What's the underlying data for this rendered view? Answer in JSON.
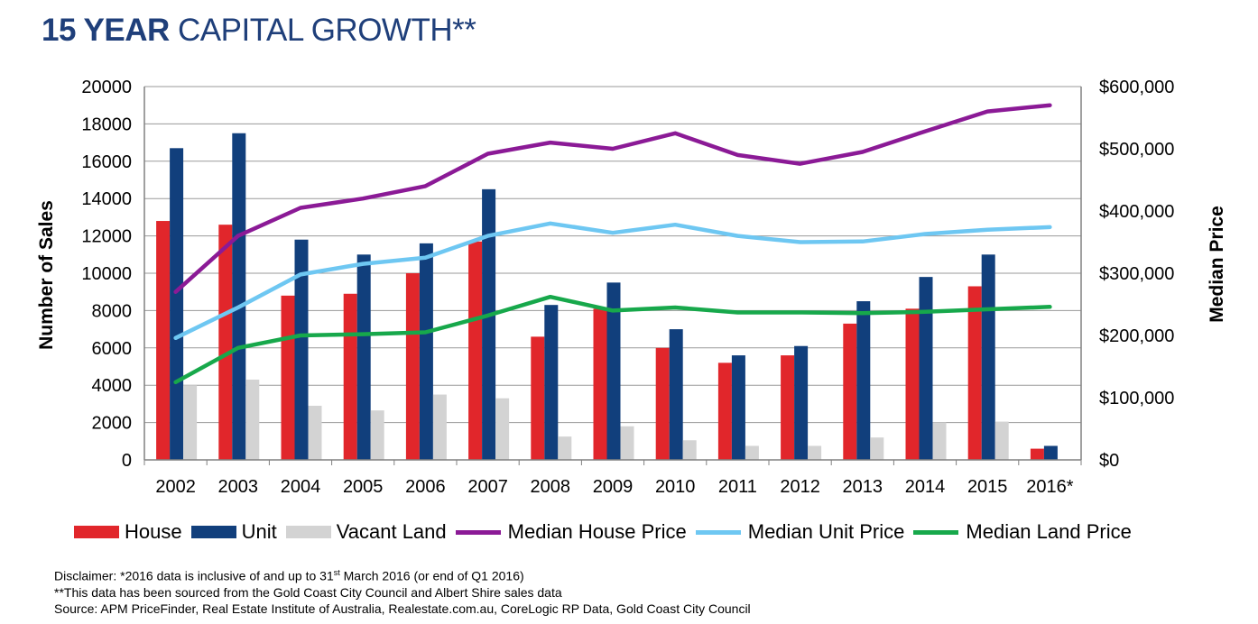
{
  "title": {
    "bold": "15 YEAR",
    "rest": "CAPITAL GROWTH**"
  },
  "colors": {
    "house": "#e1262b",
    "unit": "#113f7c",
    "land": "#d3d3d3",
    "median_house": "#8b1a96",
    "median_unit": "#6ec7f2",
    "median_land": "#17a84b",
    "grid": "#9a9a9a",
    "title": "#1f3f7a"
  },
  "chart_data": {
    "type": "bar",
    "categories": [
      "2002",
      "2003",
      "2004",
      "2005",
      "2006",
      "2007",
      "2008",
      "2009",
      "2010",
      "2011",
      "2012",
      "2013",
      "2014",
      "2015",
      "2016*"
    ],
    "ylabel": "Number of Sales",
    "ylabel_right": "Median Price",
    "ylim": [
      0,
      20000
    ],
    "ylim_right": [
      0,
      600000
    ],
    "yticks": [
      "20000",
      "18000",
      "16000",
      "14000",
      "12000",
      "10000",
      "8000",
      "6000",
      "4000",
      "2000",
      "0"
    ],
    "yticks_right": [
      "$600,000",
      "$500,000",
      "$400,000",
      "$300,000",
      "$200,000",
      "$100,000",
      "$0"
    ],
    "grid": true,
    "legend_position": "bottom",
    "bar_series": [
      {
        "name": "House",
        "color_key": "house",
        "values": [
          12800,
          12600,
          8800,
          8900,
          10000,
          11700,
          6600,
          8100,
          6000,
          5200,
          5600,
          7300,
          8100,
          9300,
          600
        ]
      },
      {
        "name": "Unit",
        "color_key": "unit",
        "values": [
          16700,
          17500,
          11800,
          11000,
          11600,
          14500,
          8300,
          9500,
          7000,
          5600,
          6100,
          8500,
          9800,
          11000,
          750
        ]
      },
      {
        "name": "Vacant Land",
        "color_key": "land",
        "values": [
          4000,
          4300,
          2900,
          2650,
          3500,
          3300,
          1250,
          1800,
          1050,
          750,
          750,
          1200,
          2000,
          2050,
          0
        ]
      }
    ],
    "line_series": [
      {
        "name": "Median House Price",
        "color_key": "median_house",
        "axis": "right",
        "values": [
          270000,
          360000,
          405000,
          420000,
          440000,
          492000,
          510000,
          500000,
          525000,
          490000,
          476000,
          495000,
          528000,
          560000,
          570000
        ]
      },
      {
        "name": "Median Unit Price",
        "color_key": "median_unit",
        "axis": "right",
        "values": [
          196000,
          245000,
          298000,
          315000,
          325000,
          360000,
          380000,
          365000,
          378000,
          360000,
          350000,
          351000,
          363000,
          370000,
          374000
        ]
      },
      {
        "name": "Median Land Price",
        "color_key": "median_land",
        "axis": "right",
        "values": [
          125000,
          180000,
          200000,
          202000,
          205000,
          232000,
          262000,
          240000,
          245000,
          237000,
          237000,
          236000,
          238000,
          242000,
          246000
        ]
      }
    ]
  },
  "disclaimer": {
    "line1_pre": "Disclaimer: *2016 data is inclusive of and up to 31",
    "line1_sup": "st",
    "line1_post": " March 2016 (or end of Q1 2016)",
    "line2": "**This data has been sourced from the Gold Coast City Council and Albert Shire sales data",
    "line3": "Source: APM PriceFinder, Real Estate Institute of Australia, Realestate.com.au, CoreLogic RP Data, Gold Coast City Council"
  }
}
